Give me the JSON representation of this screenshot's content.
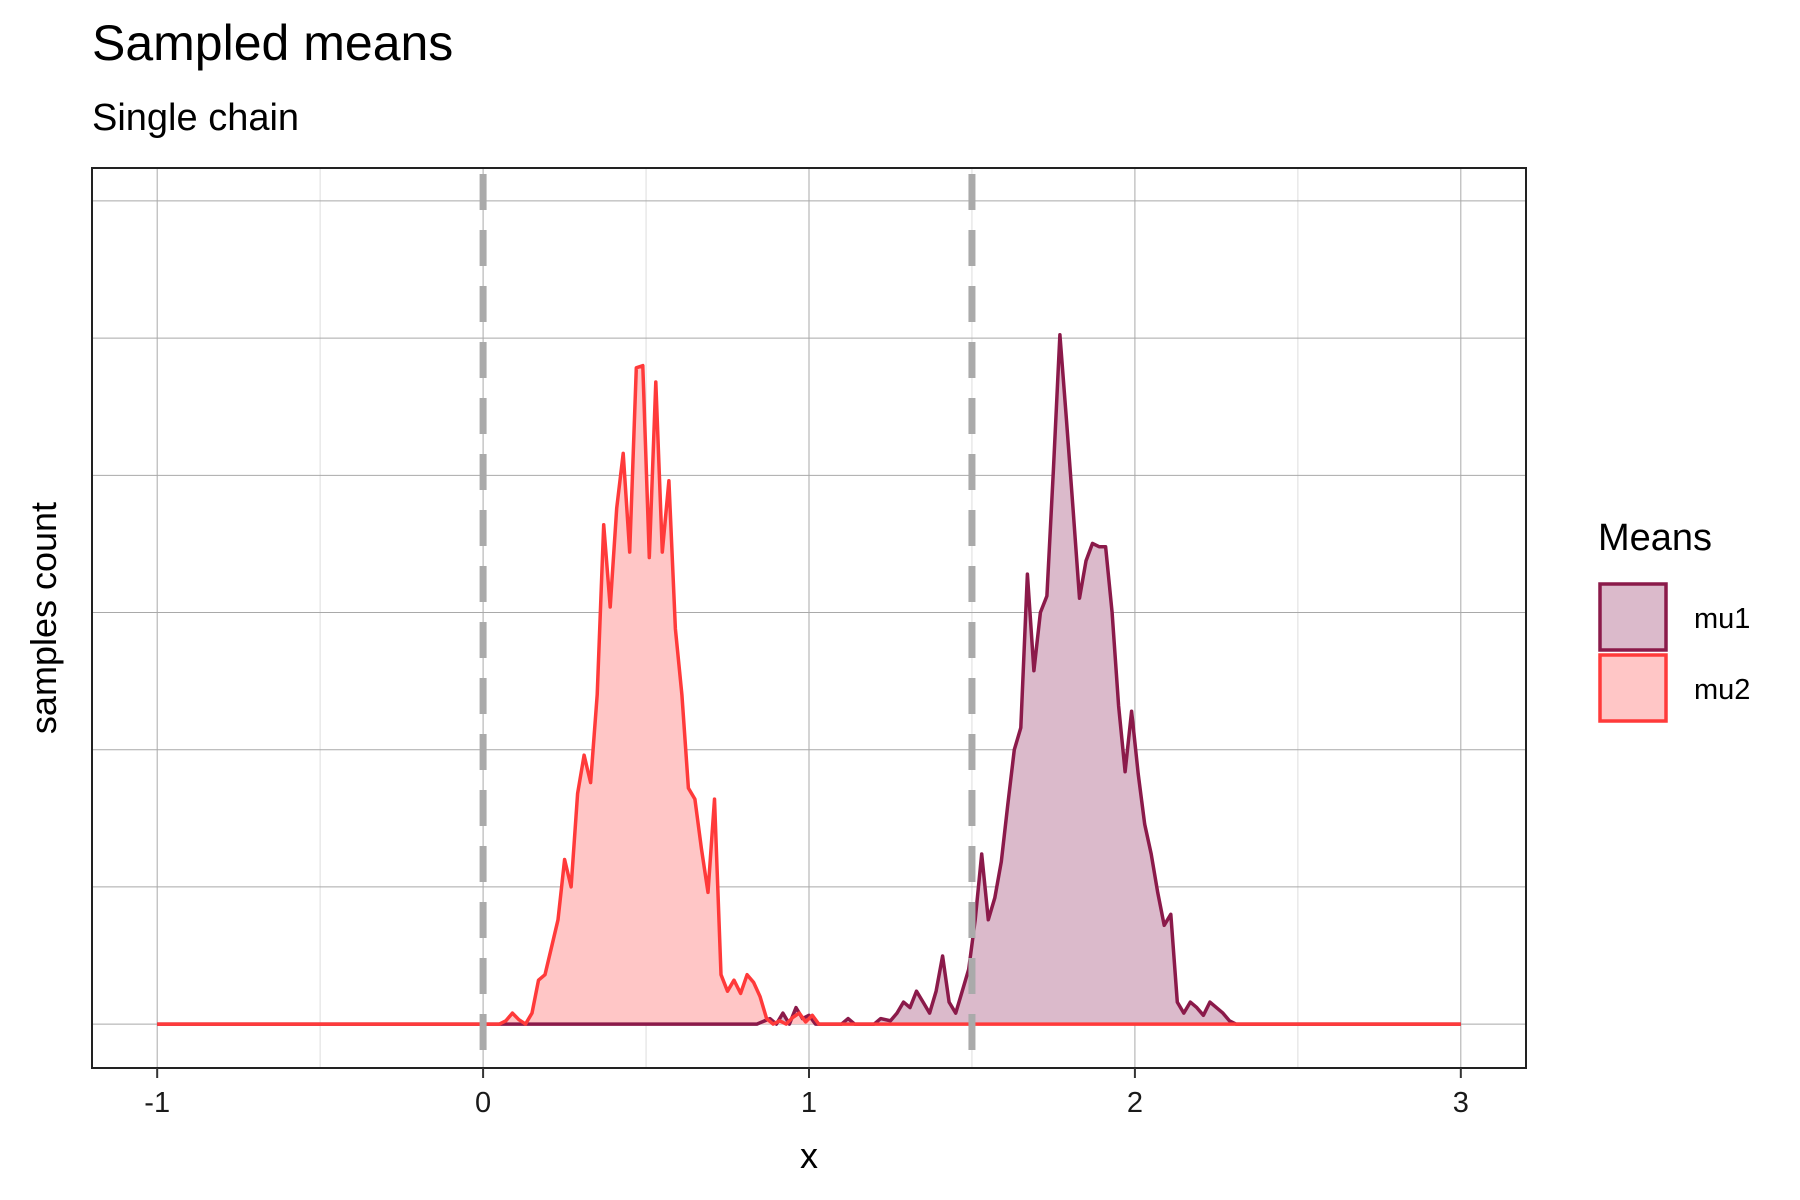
{
  "chart_data": {
    "type": "area",
    "title": "Sampled means",
    "subtitle": "Single chain",
    "xlabel": "x",
    "ylabel": "samples count",
    "xlim": [
      -1.2,
      3.2
    ],
    "ylim": [
      -0.04,
      0.78
    ],
    "x_ticks": [
      -1,
      0,
      1,
      2,
      3
    ],
    "x_tick_labels": [
      "-1",
      "0",
      "1",
      "2",
      "3"
    ],
    "y_gridlines": [
      0,
      0.125,
      0.25,
      0.375,
      0.5,
      0.625,
      0.75
    ],
    "y_tick_labels_shown": false,
    "grid": true,
    "reference_lines": [
      {
        "x": 0,
        "style": "dashed",
        "color": "#aaaaaa"
      },
      {
        "x": 1.5,
        "style": "dashed",
        "color": "#aaaaaa"
      }
    ],
    "legend": {
      "title": "Means",
      "position": "right"
    },
    "series": [
      {
        "name": "mu1",
        "line_color": "#8b1a4a",
        "fill_color": "#dbbacb",
        "points": [
          [
            -1.0,
            0
          ],
          [
            0.84,
            0
          ],
          [
            0.88,
            0.005
          ],
          [
            0.9,
            0
          ],
          [
            0.92,
            0.01
          ],
          [
            0.94,
            0
          ],
          [
            0.96,
            0.015
          ],
          [
            0.98,
            0.005
          ],
          [
            1.0,
            0.008
          ],
          [
            1.02,
            0
          ],
          [
            1.1,
            0
          ],
          [
            1.12,
            0.005
          ],
          [
            1.14,
            0
          ],
          [
            1.2,
            0
          ],
          [
            1.22,
            0.005
          ],
          [
            1.25,
            0.003
          ],
          [
            1.27,
            0.01
          ],
          [
            1.29,
            0.02
          ],
          [
            1.31,
            0.015
          ],
          [
            1.33,
            0.03
          ],
          [
            1.35,
            0.02
          ],
          [
            1.37,
            0.01
          ],
          [
            1.39,
            0.03
          ],
          [
            1.41,
            0.062
          ],
          [
            1.43,
            0.02
          ],
          [
            1.45,
            0.01
          ],
          [
            1.47,
            0.03
          ],
          [
            1.49,
            0.05
          ],
          [
            1.51,
            0.095
          ],
          [
            1.53,
            0.155
          ],
          [
            1.55,
            0.095
          ],
          [
            1.57,
            0.115
          ],
          [
            1.59,
            0.148
          ],
          [
            1.61,
            0.2
          ],
          [
            1.63,
            0.25
          ],
          [
            1.65,
            0.27
          ],
          [
            1.67,
            0.41
          ],
          [
            1.69,
            0.322
          ],
          [
            1.71,
            0.375
          ],
          [
            1.73,
            0.39
          ],
          [
            1.75,
            0.505
          ],
          [
            1.77,
            0.628
          ],
          [
            1.79,
            0.55
          ],
          [
            1.81,
            0.47
          ],
          [
            1.83,
            0.388
          ],
          [
            1.85,
            0.422
          ],
          [
            1.87,
            0.438
          ],
          [
            1.89,
            0.435
          ],
          [
            1.91,
            0.435
          ],
          [
            1.93,
            0.375
          ],
          [
            1.95,
            0.29
          ],
          [
            1.97,
            0.23
          ],
          [
            1.99,
            0.285
          ],
          [
            2.01,
            0.228
          ],
          [
            2.03,
            0.182
          ],
          [
            2.05,
            0.155
          ],
          [
            2.07,
            0.12
          ],
          [
            2.09,
            0.09
          ],
          [
            2.11,
            0.1
          ],
          [
            2.13,
            0.02
          ],
          [
            2.15,
            0.01
          ],
          [
            2.17,
            0.02
          ],
          [
            2.19,
            0.015
          ],
          [
            2.21,
            0.008
          ],
          [
            2.23,
            0.02
          ],
          [
            2.25,
            0.015
          ],
          [
            2.27,
            0.01
          ],
          [
            2.29,
            0.003
          ],
          [
            2.31,
            0
          ],
          [
            3.0,
            0
          ]
        ]
      },
      {
        "name": "mu2",
        "line_color": "#ff3a3a",
        "fill_color": "#ffc6c6",
        "points": [
          [
            -1.0,
            0
          ],
          [
            0.05,
            0
          ],
          [
            0.07,
            0.003
          ],
          [
            0.09,
            0.01
          ],
          [
            0.11,
            0.004
          ],
          [
            0.13,
            0
          ],
          [
            0.15,
            0.01
          ],
          [
            0.17,
            0.04
          ],
          [
            0.19,
            0.045
          ],
          [
            0.21,
            0.07
          ],
          [
            0.23,
            0.095
          ],
          [
            0.25,
            0.15
          ],
          [
            0.27,
            0.125
          ],
          [
            0.29,
            0.21
          ],
          [
            0.31,
            0.245
          ],
          [
            0.33,
            0.22
          ],
          [
            0.35,
            0.3
          ],
          [
            0.37,
            0.455
          ],
          [
            0.39,
            0.38
          ],
          [
            0.41,
            0.47
          ],
          [
            0.43,
            0.52
          ],
          [
            0.45,
            0.43
          ],
          [
            0.47,
            0.598
          ],
          [
            0.49,
            0.6
          ],
          [
            0.51,
            0.425
          ],
          [
            0.53,
            0.585
          ],
          [
            0.55,
            0.43
          ],
          [
            0.57,
            0.495
          ],
          [
            0.59,
            0.36
          ],
          [
            0.61,
            0.3
          ],
          [
            0.63,
            0.215
          ],
          [
            0.65,
            0.205
          ],
          [
            0.67,
            0.16
          ],
          [
            0.69,
            0.12
          ],
          [
            0.71,
            0.205
          ],
          [
            0.73,
            0.045
          ],
          [
            0.75,
            0.03
          ],
          [
            0.77,
            0.04
          ],
          [
            0.79,
            0.028
          ],
          [
            0.81,
            0.045
          ],
          [
            0.83,
            0.038
          ],
          [
            0.85,
            0.025
          ],
          [
            0.87,
            0.005
          ],
          [
            0.89,
            0
          ],
          [
            0.91,
            0.003
          ],
          [
            0.93,
            0
          ],
          [
            0.95,
            0.006
          ],
          [
            0.97,
            0.01
          ],
          [
            0.99,
            0.002
          ],
          [
            1.01,
            0.008
          ],
          [
            1.03,
            0
          ],
          [
            3.0,
            0
          ]
        ]
      }
    ]
  }
}
